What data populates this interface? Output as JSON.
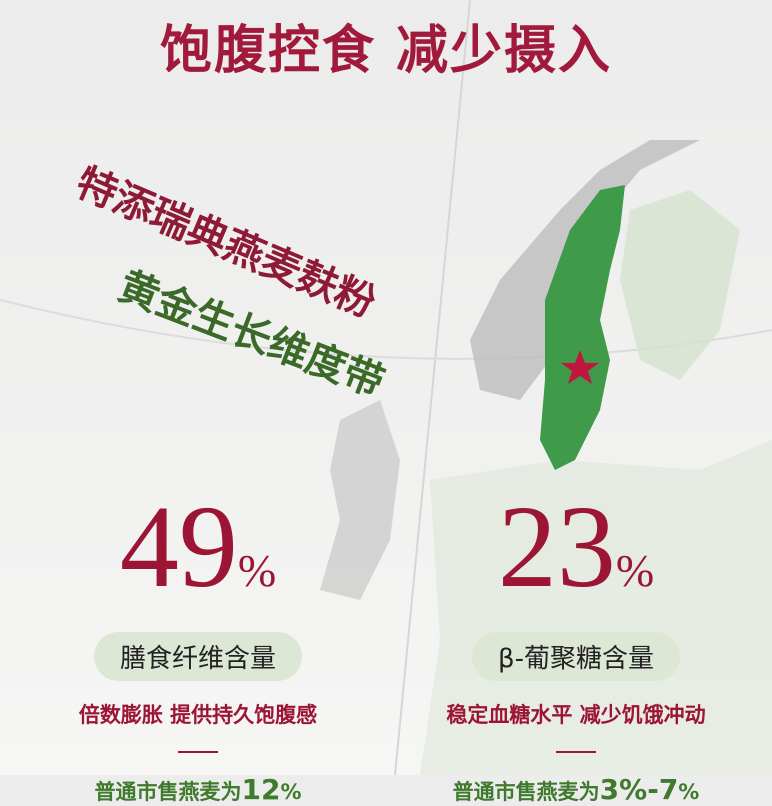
{
  "title": "饱腹控食 减少摄入",
  "slogan_line1": "特添瑞典燕麦麸粉",
  "slogan_line2": "黄金生长维度带",
  "colors": {
    "accent_red": "#9c1535",
    "accent_green": "#3f7a2d",
    "sweden_green": "#3f9a4a"
  },
  "map": {
    "highlighted_country": "Sweden",
    "marker_icon": "star-icon"
  },
  "stats": [
    {
      "value": "49",
      "unit": "%",
      "label": "膳食纤维含量",
      "benefit": "倍数膨胀 提供持久饱腹感",
      "compare_prefix": "普通市售燕麦为",
      "compare_value": "12",
      "compare_unit": "%"
    },
    {
      "value": "23",
      "unit": "%",
      "label": "β-葡聚糖含量",
      "benefit": "稳定血糖水平 减少饥饿冲动",
      "compare_prefix": "普通市售燕麦为",
      "compare_value": "3%-7",
      "compare_unit": "%"
    }
  ]
}
